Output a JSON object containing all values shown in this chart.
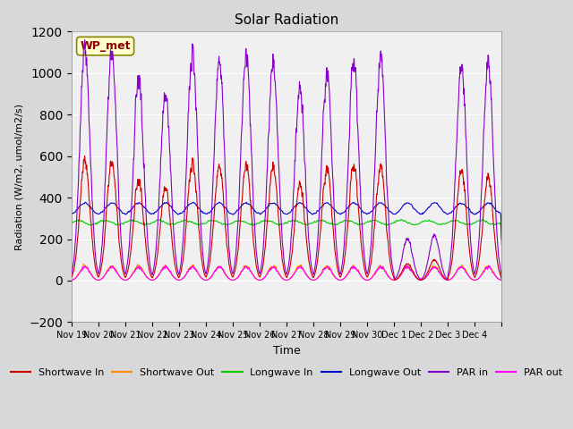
{
  "title": "Solar Radiation",
  "xlabel": "Time",
  "ylabel": "Radiation (W/m2, umol/m2/s)",
  "ylim": [
    -200,
    1200
  ],
  "yticks": [
    -200,
    0,
    200,
    400,
    600,
    800,
    1000,
    1200
  ],
  "bg_color": "#e8e8e8",
  "plot_bg_color": "#f0f0f0",
  "station_label": "WP_met",
  "colors": {
    "shortwave_in": "#cc0000",
    "shortwave_out": "#ff8800",
    "longwave_in": "#00cc00",
    "longwave_out": "#0000cc",
    "par_in": "#8800cc",
    "par_out": "#ff00ff"
  },
  "legend": [
    {
      "label": "Shortwave In",
      "color": "#cc0000"
    },
    {
      "label": "Shortwave Out",
      "color": "#ff8800"
    },
    {
      "label": "Longwave In",
      "color": "#00cc00"
    },
    {
      "label": "Longwave Out",
      "color": "#0000cc"
    },
    {
      "label": "PAR in",
      "color": "#8800cc"
    },
    {
      "label": "PAR out",
      "color": "#ff00ff"
    }
  ],
  "x_tick_labels": [
    "Nov 19",
    "Nov 20",
    "Nov 21",
    "Nov 22",
    "Nov 23",
    "Nov 24",
    "Nov 25",
    "Nov 26",
    "Nov 27",
    "Nov 28",
    "Nov 29",
    "Nov 30",
    "Dec 1",
    "Dec 2",
    "Dec 3",
    "Dec 4"
  ],
  "num_days": 16,
  "points_per_day": 144
}
